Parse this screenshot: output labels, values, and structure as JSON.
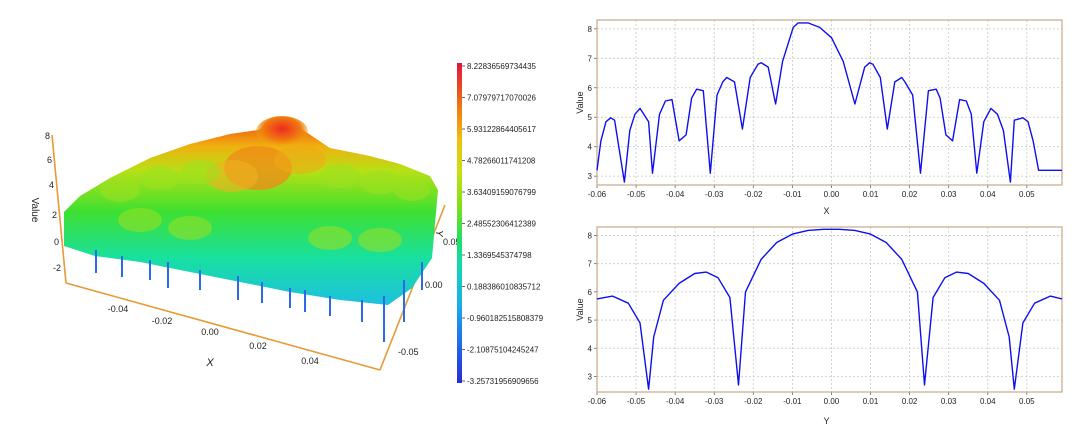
{
  "colors": {
    "curve": "#1010ee",
    "frame": "#c8a888",
    "grid": "#c8c8c8",
    "axis3d": "#e79a35"
  },
  "surface_plot": {
    "type": "surface3d",
    "xlabel": "X",
    "ylabel": "Y",
    "zlabel": "Value",
    "x_ticks": [
      "-0.04",
      "-0.02",
      "0.00",
      "0.02",
      "0.04"
    ],
    "y_ticks": [
      "0.05",
      "0.00",
      "-0.05"
    ],
    "z_ticks": [
      "8",
      "6",
      "4",
      "2",
      "0",
      "-2"
    ],
    "colorbar_ticks": [
      "8.22836569734435",
      "7.07979717070026",
      "5.93122864405617",
      "4.78266011741208",
      "3.63409159076799",
      "2.48552306412389",
      "1.3369545374798",
      "0.188386010835712",
      "-0.960182515808379",
      "-2.10875104245247",
      "-3.25731956909656"
    ],
    "zmin": -3.25731956909656,
    "zmax": 8.22836569734435
  },
  "chart_data": [
    {
      "type": "line",
      "title": "",
      "xlabel": "X",
      "ylabel": "Value",
      "xlim": [
        -0.06,
        0.059
      ],
      "ylim": [
        2.7,
        8.3
      ],
      "x_ticks": [
        "-0.06",
        "-0.05",
        "-0.04",
        "-0.03",
        "-0.02",
        "-0.01",
        "0.00",
        "0.01",
        "0.02",
        "0.03",
        "0.04",
        "0.05"
      ],
      "y_ticks": [
        "3",
        "4",
        "5",
        "6",
        "7",
        "8"
      ],
      "grid": true,
      "x": [
        -0.06,
        -0.059,
        -0.0577,
        -0.0565,
        -0.0555,
        -0.053,
        -0.0516,
        -0.0503,
        -0.049,
        -0.0468,
        -0.0458,
        -0.044,
        -0.0425,
        -0.0408,
        -0.039,
        -0.0372,
        -0.0358,
        -0.0345,
        -0.0328,
        -0.031,
        -0.0293,
        -0.0278,
        -0.0268,
        -0.0248,
        -0.0228,
        -0.0208,
        -0.0188,
        -0.018,
        -0.0162,
        -0.0143,
        -0.0125,
        -0.0106,
        -0.0098,
        -0.0085,
        -0.006,
        -0.003,
        0.0,
        0.003,
        0.006,
        0.0085,
        0.0098,
        0.0106,
        0.0125,
        0.0143,
        0.0162,
        0.018,
        0.0188,
        0.0208,
        0.0228,
        0.0248,
        0.0268,
        0.0278,
        0.0293,
        0.031,
        0.0328,
        0.0345,
        0.0358,
        0.0372,
        0.039,
        0.0408,
        0.0425,
        0.044,
        0.0458,
        0.0468,
        0.049,
        0.0503,
        0.0516,
        0.053,
        0.0555,
        0.0565,
        0.0577,
        0.059
      ],
      "values": [
        3.2,
        4.2,
        4.85,
        4.98,
        4.9,
        2.8,
        4.55,
        5.1,
        5.3,
        4.85,
        3.1,
        5.1,
        5.55,
        5.6,
        4.2,
        4.4,
        5.65,
        5.95,
        5.9,
        3.1,
        5.75,
        6.2,
        6.35,
        6.2,
        4.6,
        6.35,
        6.8,
        6.85,
        6.7,
        5.45,
        6.9,
        7.7,
        8.05,
        8.2,
        8.2,
        8.05,
        7.7,
        6.9,
        5.45,
        6.7,
        6.85,
        6.8,
        6.35,
        4.6,
        6.2,
        6.35,
        6.2,
        5.75,
        3.1,
        5.9,
        5.95,
        5.65,
        4.4,
        4.2,
        5.6,
        5.55,
        5.1,
        3.1,
        4.85,
        5.3,
        5.1,
        4.55,
        2.8,
        4.9,
        4.98,
        4.85,
        4.2,
        3.2,
        3.2,
        3.2,
        3.2,
        3.2
      ]
    },
    {
      "type": "line",
      "title": "",
      "xlabel": "Y",
      "ylabel": "Value",
      "xlim": [
        -0.06,
        0.059
      ],
      "ylim": [
        2.45,
        8.3
      ],
      "x_ticks": [
        "-0.06",
        "-0.05",
        "-0.04",
        "-0.03",
        "-0.02",
        "-0.01",
        "0.00",
        "0.01",
        "0.02",
        "0.03",
        "0.04",
        "0.05"
      ],
      "y_ticks": [
        "3",
        "4",
        "5",
        "6",
        "7",
        "8"
      ],
      "grid": true,
      "x": [
        -0.06,
        -0.056,
        -0.052,
        -0.049,
        -0.0468,
        -0.0455,
        -0.043,
        -0.039,
        -0.035,
        -0.032,
        -0.029,
        -0.026,
        -0.0238,
        -0.022,
        -0.018,
        -0.014,
        -0.01,
        -0.006,
        -0.002,
        0.0,
        0.002,
        0.006,
        0.01,
        0.014,
        0.018,
        0.022,
        0.0238,
        0.026,
        0.029,
        0.032,
        0.035,
        0.039,
        0.043,
        0.0455,
        0.0468,
        0.049,
        0.052,
        0.056,
        0.059
      ],
      "values": [
        5.75,
        5.85,
        5.6,
        4.9,
        2.55,
        4.4,
        5.7,
        6.3,
        6.65,
        6.7,
        6.5,
        5.8,
        2.7,
        6.0,
        7.15,
        7.75,
        8.05,
        8.18,
        8.22,
        8.22,
        8.22,
        8.18,
        8.05,
        7.75,
        7.15,
        6.0,
        2.7,
        5.8,
        6.5,
        6.7,
        6.65,
        6.3,
        5.7,
        4.4,
        2.55,
        4.9,
        5.6,
        5.85,
        5.75
      ]
    }
  ]
}
